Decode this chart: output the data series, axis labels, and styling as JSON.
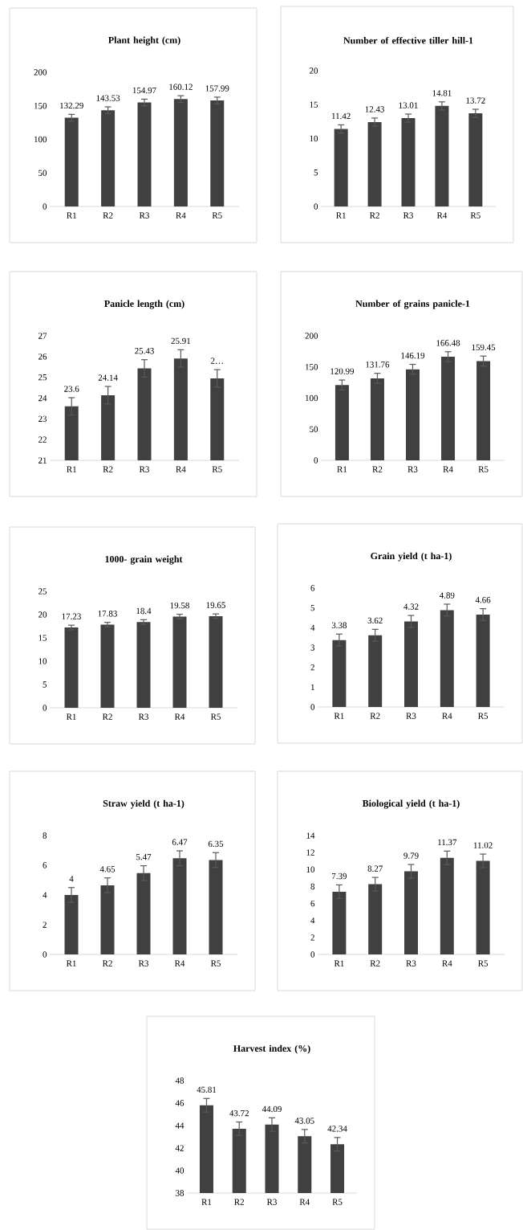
{
  "chart_data": [
    {
      "type": "bar",
      "title": "Plant height (cm)",
      "categories": [
        "R1",
        "R2",
        "R3",
        "R4",
        "R5"
      ],
      "values": [
        132.29,
        143.53,
        154.97,
        160.12,
        157.99
      ],
      "errors": [
        5,
        5,
        5,
        5,
        5
      ],
      "color": "#404040",
      "ylim": [
        0,
        200
      ],
      "yticks": [
        0,
        50,
        100,
        150,
        200
      ],
      "data_labels": true
    },
    {
      "type": "bar",
      "title": "Number of effective tiller hill-1",
      "categories": [
        "R1",
        "R2",
        "R3",
        "R4",
        "R5"
      ],
      "values": [
        11.42,
        12.43,
        13.01,
        14.81,
        13.72
      ],
      "errors": [
        0.6,
        0.6,
        0.6,
        0.6,
        0.6
      ],
      "color": "#404040",
      "ylim": [
        0,
        20
      ],
      "yticks": [
        0,
        5,
        10,
        15,
        20
      ],
      "data_labels": true
    },
    {
      "type": "bar",
      "title": "Panicle length (cm)",
      "categories": [
        "R1",
        "R2",
        "R3",
        "R4",
        "R5"
      ],
      "values": [
        23.6,
        24.14,
        25.43,
        25.91,
        24.95
      ],
      "errors": [
        0.42,
        0.42,
        0.42,
        0.42,
        0.42
      ],
      "color": "#404040",
      "ylim": [
        21,
        27
      ],
      "yticks": [
        21,
        22,
        23,
        24,
        25,
        26,
        27
      ],
      "value_labels": [
        "23.6",
        "24.14",
        "25.43",
        "25.91",
        "2…"
      ]
    },
    {
      "type": "bar",
      "title": "Number of grains panicle-1",
      "categories": [
        "R1",
        "R2",
        "R3",
        "R4",
        "R5"
      ],
      "values": [
        120.99,
        131.76,
        146.19,
        166.48,
        159.45
      ],
      "errors": [
        8,
        8,
        8,
        8,
        8
      ],
      "color": "#404040",
      "ylim": [
        0,
        200
      ],
      "yticks": [
        0,
        50,
        100,
        150,
        200
      ],
      "data_labels": true
    },
    {
      "type": "bar",
      "title": "1000- grain weight",
      "categories": [
        "R1",
        "R2",
        "R3",
        "R4",
        "R5"
      ],
      "values": [
        17.23,
        17.83,
        18.4,
        19.58,
        19.65
      ],
      "errors": [
        0.5,
        0.5,
        0.5,
        0.5,
        0.5
      ],
      "color": "#404040",
      "ylim": [
        0,
        25
      ],
      "yticks": [
        0,
        5,
        10,
        15,
        20,
        25
      ],
      "data_labels": true
    },
    {
      "type": "bar",
      "title": "Grain yield (t ha-1)",
      "categories": [
        "R1",
        "R2",
        "R3",
        "R4",
        "R5"
      ],
      "values": [
        3.38,
        3.62,
        4.32,
        4.89,
        4.66
      ],
      "errors": [
        0.3,
        0.3,
        0.3,
        0.3,
        0.3
      ],
      "color": "#404040",
      "ylim": [
        0,
        6
      ],
      "yticks": [
        0,
        1,
        2,
        3,
        4,
        5,
        6
      ],
      "data_labels": true
    },
    {
      "type": "bar",
      "title": "Straw yield (t ha-1)",
      "categories": [
        "R1",
        "R2",
        "R3",
        "R4",
        "R5"
      ],
      "values": [
        4,
        4.65,
        5.47,
        6.47,
        6.35
      ],
      "errors": [
        0.5,
        0.5,
        0.5,
        0.5,
        0.5
      ],
      "color": "#404040",
      "ylim": [
        0,
        8
      ],
      "yticks": [
        0,
        2,
        4,
        6,
        8
      ],
      "data_labels": true
    },
    {
      "type": "bar",
      "title": "Biological yield (t ha-1)",
      "categories": [
        "R1",
        "R2",
        "R3",
        "R4",
        "R5"
      ],
      "values": [
        7.39,
        8.27,
        9.79,
        11.37,
        11.02
      ],
      "errors": [
        0.8,
        0.8,
        0.8,
        0.8,
        0.8
      ],
      "color": "#404040",
      "ylim": [
        0,
        14
      ],
      "yticks": [
        0,
        2,
        4,
        6,
        8,
        10,
        12,
        14
      ],
      "data_labels": true
    },
    {
      "type": "bar",
      "title": "Harvest index (%)",
      "categories": [
        "R1",
        "R2",
        "R3",
        "R4",
        "R5"
      ],
      "values": [
        45.81,
        43.72,
        44.09,
        43.05,
        42.34
      ],
      "errors": [
        0.6,
        0.6,
        0.6,
        0.6,
        0.6
      ],
      "color": "#404040",
      "ylim": [
        38,
        48
      ],
      "yticks": [
        38,
        40,
        42,
        44,
        46,
        48
      ],
      "data_labels": true
    }
  ]
}
